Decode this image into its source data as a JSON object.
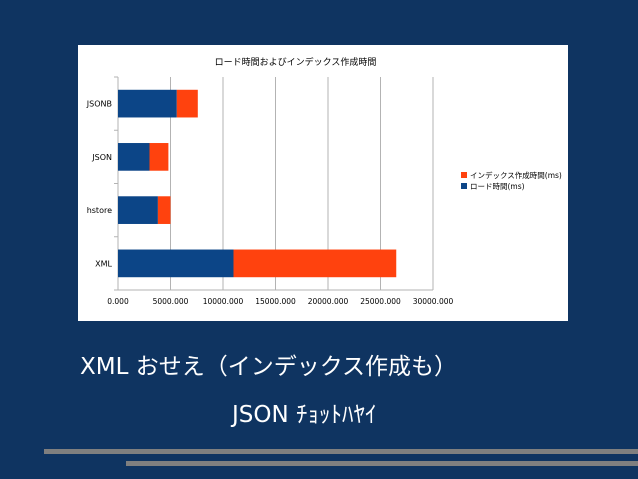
{
  "slide": {
    "caption_line1": "XML おせえ（インデックス作成も）",
    "caption_line2": "JSON ﾁｮｯﾄﾊﾔｲ",
    "background_color": "#0f3461",
    "rule_color": "#7f7f7f"
  },
  "chart_data": {
    "type": "bar",
    "orientation": "horizontal",
    "stacked": true,
    "title": "ロード時間およびインデックス作成時間",
    "categories": [
      "JSONB",
      "JSON",
      "hstore",
      "XML"
    ],
    "series": [
      {
        "name": "ロード時間(ms)",
        "color": "#0c4587",
        "values": [
          5600,
          3000,
          3800,
          11000
        ]
      },
      {
        "name": "インデックス作成時間(ms)",
        "color": "#ff420e",
        "values": [
          2000,
          1800,
          1200,
          15500
        ]
      }
    ],
    "xlim": [
      0,
      30000
    ],
    "x_ticks": [
      "0.000",
      "5000.000",
      "10000.000",
      "15000.000",
      "20000.000",
      "25000.000",
      "30000.000"
    ],
    "x_tick_values": [
      0,
      5000,
      10000,
      15000,
      20000,
      25000,
      30000
    ],
    "grid": "vertical",
    "legend_position": "right",
    "legend_entries": [
      "インデックス作成時間(ms)",
      "ロード時間(ms)"
    ]
  }
}
